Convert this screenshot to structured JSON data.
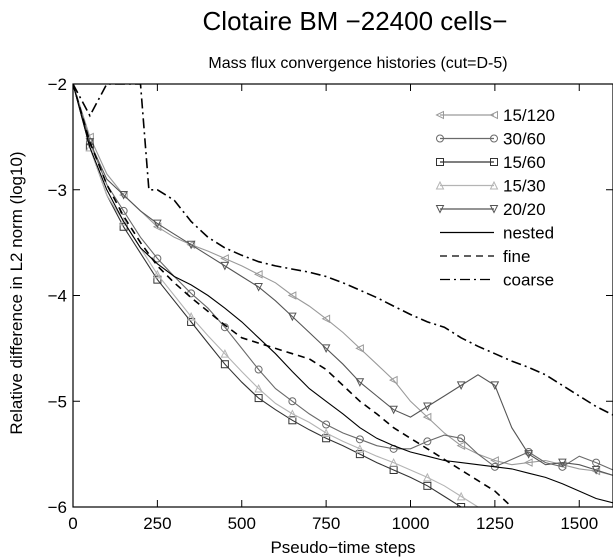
{
  "chart_data": {
    "type": "line",
    "title": "Clotaire BM  −22400 cells−",
    "subtitle": "Mass flux convergence histories (cut=D-5)",
    "xlabel": "Pseudo−time steps",
    "ylabel": "Relative difference in L2 norm (log10)",
    "xlim": [
      0,
      1600
    ],
    "ylim": [
      -6,
      -2
    ],
    "x_ticks": [
      0,
      250,
      500,
      750,
      1000,
      1250,
      1500
    ],
    "y_ticks": [
      -2,
      -3,
      -4,
      -5,
      -6
    ],
    "x_tick_labels": [
      "0",
      "250",
      "500",
      "750",
      "1000",
      "1250",
      "1500"
    ],
    "y_tick_labels": [
      "−2",
      "−3",
      "−4",
      "−5",
      "−6"
    ],
    "grid": false,
    "legend_position": "top-right",
    "series": [
      {
        "name": "15/120",
        "style": "solid",
        "marker": "triangle-left",
        "color": "#9a9a9a",
        "x": [
          0,
          50,
          100,
          150,
          200,
          250,
          300,
          350,
          400,
          450,
          500,
          550,
          600,
          650,
          700,
          750,
          800,
          850,
          900,
          950,
          1000,
          1050,
          1100,
          1150,
          1200,
          1250,
          1300,
          1350,
          1400,
          1450,
          1500,
          1550,
          1600
        ],
        "y": [
          -2.0,
          -2.5,
          -2.85,
          -3.05,
          -3.2,
          -3.35,
          -3.45,
          -3.52,
          -3.58,
          -3.65,
          -3.72,
          -3.8,
          -3.88,
          -4.0,
          -4.1,
          -4.22,
          -4.35,
          -4.5,
          -4.65,
          -4.8,
          -5.0,
          -5.15,
          -5.3,
          -5.42,
          -5.5,
          -5.56,
          -5.6,
          -5.58,
          -5.56,
          -5.6,
          -5.64,
          -5.66,
          -5.7
        ]
      },
      {
        "name": "30/60",
        "style": "solid",
        "marker": "circle",
        "color": "#6a6a6a",
        "x": [
          0,
          50,
          100,
          150,
          200,
          250,
          300,
          350,
          400,
          450,
          500,
          550,
          600,
          650,
          700,
          750,
          800,
          850,
          900,
          950,
          1000,
          1050,
          1100,
          1150,
          1200,
          1250,
          1300,
          1350,
          1400,
          1450,
          1500,
          1550,
          1600
        ],
        "y": [
          -2.0,
          -2.55,
          -2.95,
          -3.2,
          -3.45,
          -3.65,
          -3.82,
          -3.98,
          -4.12,
          -4.3,
          -4.5,
          -4.7,
          -4.88,
          -5.0,
          -5.12,
          -5.22,
          -5.3,
          -5.36,
          -5.42,
          -5.45,
          -5.45,
          -5.38,
          -5.32,
          -5.35,
          -5.5,
          -5.62,
          -5.55,
          -5.48,
          -5.58,
          -5.62,
          -5.52,
          -5.58,
          -5.65
        ]
      },
      {
        "name": "15/60",
        "style": "solid",
        "marker": "square",
        "color": "#333333",
        "x": [
          0,
          50,
          100,
          150,
          200,
          250,
          300,
          350,
          400,
          450,
          500,
          550,
          600,
          650,
          700,
          750,
          800,
          850,
          900,
          950,
          1000,
          1050,
          1100,
          1150
        ],
        "y": [
          -2.0,
          -2.6,
          -3.05,
          -3.35,
          -3.6,
          -3.85,
          -4.05,
          -4.25,
          -4.45,
          -4.65,
          -4.82,
          -4.97,
          -5.08,
          -5.18,
          -5.27,
          -5.35,
          -5.42,
          -5.5,
          -5.58,
          -5.65,
          -5.72,
          -5.8,
          -5.9,
          -6.0
        ]
      },
      {
        "name": "15/30",
        "style": "solid",
        "marker": "triangle-up",
        "color": "#b4b4b4",
        "x": [
          0,
          50,
          100,
          150,
          200,
          250,
          300,
          350,
          400,
          450,
          500,
          550,
          600,
          650,
          700,
          750,
          800,
          850,
          900,
          950,
          1000,
          1050,
          1100,
          1150,
          1200
        ],
        "y": [
          -2.0,
          -2.6,
          -3.05,
          -3.3,
          -3.55,
          -3.8,
          -4.0,
          -4.2,
          -4.38,
          -4.55,
          -4.72,
          -4.88,
          -5.02,
          -5.12,
          -5.2,
          -5.3,
          -5.38,
          -5.45,
          -5.52,
          -5.58,
          -5.65,
          -5.72,
          -5.8,
          -5.9,
          -6.0
        ]
      },
      {
        "name": "20/20",
        "style": "solid",
        "marker": "triangle-down",
        "color": "#555555",
        "x": [
          0,
          50,
          100,
          150,
          200,
          250,
          300,
          350,
          400,
          450,
          500,
          550,
          600,
          650,
          700,
          750,
          800,
          850,
          900,
          950,
          1000,
          1050,
          1100,
          1150,
          1200,
          1250,
          1300,
          1350,
          1400,
          1450,
          1500,
          1550,
          1600
        ],
        "y": [
          -2.0,
          -2.55,
          -2.9,
          -3.05,
          -3.2,
          -3.32,
          -3.42,
          -3.52,
          -3.62,
          -3.72,
          -3.82,
          -3.92,
          -4.05,
          -4.2,
          -4.35,
          -4.5,
          -4.65,
          -4.82,
          -4.95,
          -5.08,
          -5.15,
          -5.05,
          -4.95,
          -4.85,
          -4.75,
          -4.85,
          -5.25,
          -5.5,
          -5.6,
          -5.58,
          -5.6,
          -5.65,
          -5.7
        ]
      },
      {
        "name": "nested",
        "style": "solid",
        "marker": "none",
        "color": "#000000",
        "x": [
          0,
          50,
          100,
          150,
          200,
          250,
          300,
          350,
          400,
          450,
          500,
          550,
          600,
          650,
          700,
          750,
          800,
          850,
          900,
          950,
          1000,
          1050,
          1100,
          1150,
          1200,
          1250,
          1300,
          1350,
          1400,
          1450,
          1500,
          1550,
          1600
        ],
        "y": [
          -2.0,
          -2.6,
          -3.0,
          -3.3,
          -3.55,
          -3.7,
          -3.82,
          -3.9,
          -4.0,
          -4.12,
          -4.25,
          -4.4,
          -4.55,
          -4.72,
          -4.88,
          -5.0,
          -5.12,
          -5.25,
          -5.35,
          -5.42,
          -5.48,
          -5.52,
          -5.56,
          -5.58,
          -5.6,
          -5.62,
          -5.64,
          -5.68,
          -5.72,
          -5.78,
          -5.85,
          -5.92,
          -5.96
        ]
      },
      {
        "name": "fine",
        "style": "dashed",
        "marker": "none",
        "color": "#000000",
        "x": [
          0,
          50,
          100,
          150,
          200,
          250,
          300,
          350,
          400,
          450,
          500,
          550,
          600,
          650,
          700,
          750,
          800,
          850,
          900,
          950,
          1000,
          1050,
          1100,
          1150,
          1200,
          1250,
          1300
        ],
        "y": [
          -2.0,
          -2.55,
          -2.95,
          -3.25,
          -3.5,
          -3.72,
          -3.88,
          -4.02,
          -4.15,
          -4.28,
          -4.4,
          -4.45,
          -4.5,
          -4.55,
          -4.6,
          -4.7,
          -4.85,
          -5.0,
          -5.12,
          -5.25,
          -5.35,
          -5.45,
          -5.55,
          -5.65,
          -5.75,
          -5.85,
          -6.0
        ]
      },
      {
        "name": "coarse",
        "style": "dashdot",
        "marker": "none",
        "color": "#000000",
        "x": [
          0,
          50,
          100,
          150,
          175,
          200,
          225,
          250,
          300,
          350,
          400,
          450,
          500,
          550,
          600,
          650,
          700,
          750,
          800,
          850,
          900,
          950,
          1000,
          1050,
          1100,
          1150,
          1200,
          1250,
          1300,
          1350,
          1400,
          1450,
          1500,
          1550,
          1600
        ],
        "y": [
          -2.0,
          -2.3,
          -2.0,
          -2.0,
          -2.0,
          -2.0,
          -3.0,
          -3.0,
          -3.1,
          -3.3,
          -3.45,
          -3.55,
          -3.62,
          -3.68,
          -3.72,
          -3.75,
          -3.78,
          -3.82,
          -3.88,
          -3.95,
          -4.02,
          -4.1,
          -4.18,
          -4.25,
          -4.3,
          -4.4,
          -4.48,
          -4.55,
          -4.62,
          -4.68,
          -4.75,
          -4.85,
          -4.95,
          -5.05,
          -5.13
        ]
      }
    ]
  }
}
